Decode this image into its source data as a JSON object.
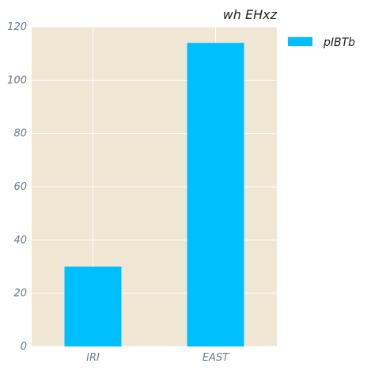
{
  "chart_data": {
    "type": "bar",
    "title": "wh EHxz",
    "xlabel": "",
    "ylabel": "",
    "categories": [
      "IRI",
      "EAST"
    ],
    "series": [
      {
        "name": "pIBTb",
        "values": [
          30,
          114
        ],
        "color": "#00bfff"
      }
    ],
    "ylim": [
      0,
      120
    ],
    "yticks": [
      0,
      20,
      40,
      60,
      80,
      100,
      120
    ],
    "grid": true,
    "legend_position": "top-right outside",
    "plot_background": "#efe7d4",
    "grid_color": "#ffffff",
    "tick_label_color": "#6b7b8a"
  }
}
